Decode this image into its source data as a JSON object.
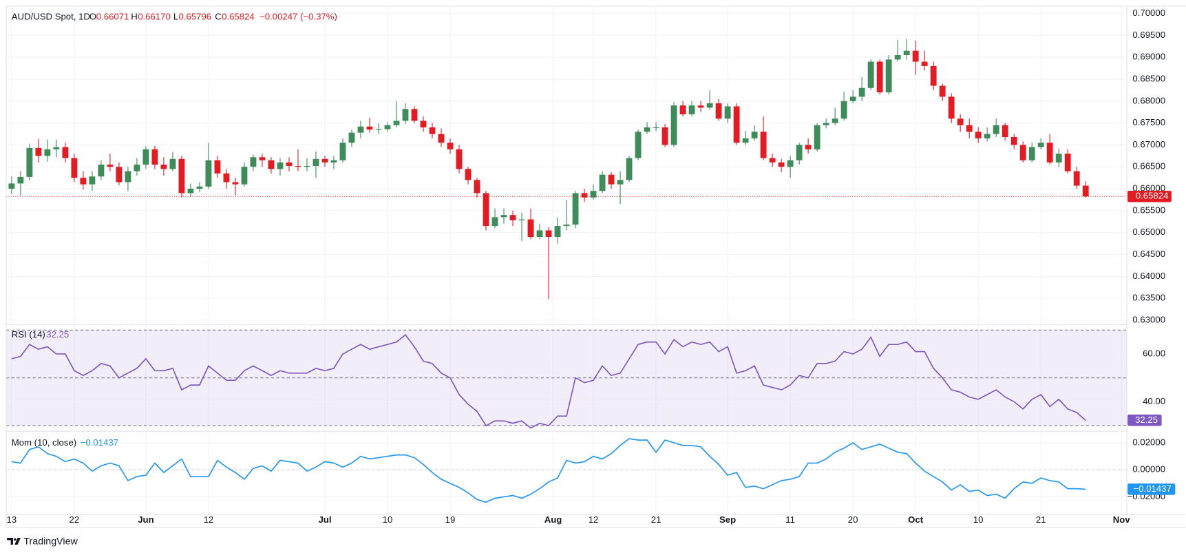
{
  "chart_data": [
    {
      "type": "candlestick",
      "title": "AUD/USD Spot, 1D",
      "header": [
        {
          "label": "O",
          "value": "0.66071"
        },
        {
          "label": "H",
          "value": "0.66170"
        },
        {
          "label": "L",
          "value": "0.65796"
        },
        {
          "label": "C",
          "value": "0.65824"
        }
      ],
      "change": "−0.00247 (−0.37%)",
      "up_color": "#3d8c59",
      "down_color": "#e31b23",
      "grid": true,
      "open": [
        0.66,
        0.6612,
        0.6627,
        0.6693,
        0.6675,
        0.669,
        0.6695,
        0.667,
        0.6625,
        0.661,
        0.6628,
        0.6655,
        0.665,
        0.6615,
        0.664,
        0.6655,
        0.669,
        0.6655,
        0.6645,
        0.6668,
        0.659,
        0.66,
        0.6605,
        0.6665,
        0.6635,
        0.6615,
        0.661,
        0.665,
        0.6672,
        0.6665,
        0.6645,
        0.666,
        0.6652,
        0.665,
        0.6652,
        0.6668,
        0.666,
        0.6665,
        0.6705,
        0.6728,
        0.6742,
        0.6735,
        0.6736,
        0.6745,
        0.6755,
        0.6782,
        0.6755,
        0.674,
        0.6725,
        0.6705,
        0.669,
        0.6645,
        0.662,
        0.659,
        0.6515,
        0.6535,
        0.654,
        0.6528,
        0.653,
        0.649,
        0.6505,
        0.649,
        0.6515,
        0.6518,
        0.659,
        0.658,
        0.6595,
        0.6632,
        0.661,
        0.662,
        0.667,
        0.673,
        0.674,
        0.674,
        0.67,
        0.679,
        0.677,
        0.679,
        0.6785,
        0.6795,
        0.676,
        0.6788,
        0.6705,
        0.6715,
        0.673,
        0.667,
        0.666,
        0.665,
        0.6665,
        0.67,
        0.669,
        0.6745,
        0.675,
        0.676,
        0.68,
        0.681,
        0.683,
        0.689,
        0.682,
        0.6895,
        0.6905,
        0.6915,
        0.689,
        0.688,
        0.6835,
        0.681,
        0.676,
        0.6745,
        0.673,
        0.6715,
        0.6725,
        0.6745,
        0.6718,
        0.67,
        0.6665,
        0.6695,
        0.6705,
        0.666,
        0.668,
        0.664,
        0.66071
      ],
      "high": [
        0.6628,
        0.664,
        0.6703,
        0.6714,
        0.6712,
        0.6712,
        0.6705,
        0.668,
        0.664,
        0.664,
        0.6665,
        0.668,
        0.666,
        0.665,
        0.667,
        0.6697,
        0.6698,
        0.6672,
        0.6684,
        0.6675,
        0.6612,
        0.6615,
        0.6705,
        0.6675,
        0.6645,
        0.6625,
        0.666,
        0.6678,
        0.668,
        0.6672,
        0.667,
        0.6672,
        0.669,
        0.667,
        0.6685,
        0.6675,
        0.6675,
        0.6715,
        0.6735,
        0.6755,
        0.6762,
        0.675,
        0.6752,
        0.68,
        0.6795,
        0.6788,
        0.6765,
        0.675,
        0.6738,
        0.6715,
        0.67,
        0.665,
        0.6625,
        0.6595,
        0.6555,
        0.6555,
        0.655,
        0.6545,
        0.6555,
        0.652,
        0.6512,
        0.6535,
        0.6575,
        0.6595,
        0.66,
        0.661,
        0.664,
        0.6638,
        0.664,
        0.6675,
        0.6735,
        0.6752,
        0.6752,
        0.6748,
        0.6798,
        0.68,
        0.68,
        0.68,
        0.6825,
        0.6805,
        0.6795,
        0.6795,
        0.6732,
        0.6745,
        0.6765,
        0.668,
        0.6668,
        0.6675,
        0.6705,
        0.6715,
        0.675,
        0.676,
        0.6785,
        0.6822,
        0.6825,
        0.6855,
        0.6895,
        0.6895,
        0.6905,
        0.694,
        0.6942,
        0.6938,
        0.6915,
        0.689,
        0.684,
        0.6818,
        0.677,
        0.676,
        0.674,
        0.674,
        0.676,
        0.675,
        0.6725,
        0.6708,
        0.6705,
        0.6715,
        0.6725,
        0.6692,
        0.669,
        0.665,
        0.6617
      ],
      "low": [
        0.6588,
        0.6585,
        0.662,
        0.666,
        0.6662,
        0.6672,
        0.666,
        0.6615,
        0.6598,
        0.6595,
        0.662,
        0.664,
        0.6608,
        0.6595,
        0.663,
        0.6645,
        0.6645,
        0.663,
        0.664,
        0.658,
        0.6582,
        0.6592,
        0.66,
        0.6625,
        0.66,
        0.6585,
        0.6605,
        0.664,
        0.665,
        0.6635,
        0.663,
        0.664,
        0.664,
        0.664,
        0.6625,
        0.665,
        0.6645,
        0.666,
        0.6695,
        0.6715,
        0.6728,
        0.6725,
        0.673,
        0.674,
        0.6748,
        0.675,
        0.673,
        0.6715,
        0.6695,
        0.668,
        0.6635,
        0.661,
        0.658,
        0.6505,
        0.651,
        0.652,
        0.6515,
        0.648,
        0.6485,
        0.6485,
        0.6348,
        0.6475,
        0.6505,
        0.651,
        0.657,
        0.6575,
        0.659,
        0.66,
        0.6565,
        0.6615,
        0.6665,
        0.6725,
        0.6732,
        0.6695,
        0.6695,
        0.6765,
        0.6765,
        0.6775,
        0.678,
        0.6755,
        0.675,
        0.67,
        0.67,
        0.671,
        0.6665,
        0.665,
        0.6638,
        0.6625,
        0.6655,
        0.668,
        0.6685,
        0.6738,
        0.6745,
        0.6755,
        0.6795,
        0.68,
        0.6825,
        0.6815,
        0.6815,
        0.689,
        0.6895,
        0.686,
        0.687,
        0.6825,
        0.68,
        0.675,
        0.673,
        0.6715,
        0.6705,
        0.6708,
        0.6718,
        0.671,
        0.669,
        0.666,
        0.666,
        0.669,
        0.6655,
        0.665,
        0.6635,
        0.66,
        0.65796
      ],
      "close": [
        0.6612,
        0.6627,
        0.6693,
        0.6675,
        0.669,
        0.6695,
        0.667,
        0.6625,
        0.661,
        0.6628,
        0.6655,
        0.665,
        0.6615,
        0.664,
        0.6655,
        0.669,
        0.6655,
        0.6645,
        0.6668,
        0.659,
        0.66,
        0.6605,
        0.6665,
        0.6635,
        0.6615,
        0.661,
        0.665,
        0.6672,
        0.6665,
        0.6645,
        0.666,
        0.6652,
        0.665,
        0.6652,
        0.6668,
        0.666,
        0.6665,
        0.6705,
        0.6728,
        0.6742,
        0.6735,
        0.6736,
        0.6745,
        0.6755,
        0.6782,
        0.6755,
        0.674,
        0.6725,
        0.6705,
        0.669,
        0.6645,
        0.662,
        0.659,
        0.6515,
        0.6535,
        0.654,
        0.6528,
        0.653,
        0.649,
        0.6505,
        0.649,
        0.6515,
        0.6518,
        0.659,
        0.658,
        0.6595,
        0.6632,
        0.661,
        0.662,
        0.667,
        0.673,
        0.674,
        0.674,
        0.67,
        0.679,
        0.677,
        0.679,
        0.6785,
        0.6795,
        0.676,
        0.6788,
        0.6705,
        0.6715,
        0.673,
        0.667,
        0.666,
        0.665,
        0.6665,
        0.67,
        0.669,
        0.6745,
        0.675,
        0.676,
        0.68,
        0.681,
        0.683,
        0.689,
        0.682,
        0.6895,
        0.6905,
        0.6915,
        0.689,
        0.688,
        0.6835,
        0.681,
        0.676,
        0.6745,
        0.673,
        0.6715,
        0.6725,
        0.6745,
        0.6718,
        0.67,
        0.6665,
        0.6695,
        0.6705,
        0.666,
        0.668,
        0.664,
        0.6607,
        0.65824
      ],
      "ylim": [
        0.629,
        0.7017
      ],
      "yticks": [
        {
          "value": 0.63,
          "label": "0.63000"
        },
        {
          "value": 0.635,
          "label": "0.63500"
        },
        {
          "value": 0.64,
          "label": "0.64000"
        },
        {
          "value": 0.645,
          "label": "0.64500"
        },
        {
          "value": 0.65,
          "label": "0.65000"
        },
        {
          "value": 0.655,
          "label": "0.65500"
        },
        {
          "value": 0.66,
          "label": "0.66000"
        },
        {
          "value": 0.665,
          "label": "0.66500"
        },
        {
          "value": 0.67,
          "label": "0.67000"
        },
        {
          "value": 0.675,
          "label": "0.67500"
        },
        {
          "value": 0.68,
          "label": "0.68000"
        },
        {
          "value": 0.685,
          "label": "0.68500"
        },
        {
          "value": 0.69,
          "label": "0.69000"
        },
        {
          "value": 0.695,
          "label": "0.69500"
        },
        {
          "value": 0.7,
          "label": "0.70000"
        }
      ],
      "xlim": [
        -0.6,
        124.6
      ],
      "xticks": [
        {
          "value": 0,
          "label": "13"
        },
        {
          "value": 7,
          "label": "22"
        },
        {
          "value": 15,
          "label": "Jun"
        },
        {
          "value": 22,
          "label": "12"
        },
        {
          "value": 35,
          "label": "Jul"
        },
        {
          "value": 42,
          "label": "10"
        },
        {
          "value": 49,
          "label": "19"
        },
        {
          "value": 60.5,
          "label": "Aug"
        },
        {
          "value": 65,
          "label": "12"
        },
        {
          "value": 72,
          "label": "21"
        },
        {
          "value": 80,
          "label": "Sep"
        },
        {
          "value": 87,
          "label": "11"
        },
        {
          "value": 94,
          "label": "20"
        },
        {
          "value": 101,
          "label": "Oct"
        },
        {
          "value": 108,
          "label": "10"
        },
        {
          "value": 115,
          "label": "21"
        },
        {
          "value": 124,
          "label": "Nov"
        }
      ]
    },
    {
      "type": "line",
      "name": "RSI (14)",
      "color": "#7e57c2",
      "band": [
        30,
        70
      ],
      "levels": [
        30,
        50,
        70
      ],
      "values": [
        58,
        59,
        64,
        62,
        63,
        60,
        60,
        53,
        51,
        53,
        56,
        55,
        50,
        52,
        54,
        58,
        53,
        53,
        54,
        45,
        47,
        47,
        55,
        52,
        49,
        49,
        53,
        55,
        53,
        51,
        53,
        52,
        52,
        52,
        54,
        53,
        54,
        60,
        62,
        64,
        62,
        63,
        64,
        65,
        68,
        63,
        57,
        56,
        52,
        50,
        43,
        39,
        36,
        30,
        32,
        32,
        31,
        32,
        29,
        31,
        30,
        34,
        34,
        50,
        48,
        49,
        55,
        51,
        52,
        58,
        64,
        65,
        65,
        60,
        66,
        63,
        65,
        64,
        65,
        61,
        63,
        52,
        53,
        55,
        47,
        46,
        45,
        47,
        51,
        50,
        56,
        56,
        57,
        61,
        60,
        62,
        67,
        59,
        64,
        64,
        65,
        61,
        61,
        54,
        50,
        45,
        44,
        42,
        41,
        43,
        45,
        42,
        40,
        37,
        41,
        43,
        38,
        41,
        37,
        35.5,
        32.25
      ],
      "ylim": [
        28,
        72
      ],
      "yticks": [
        {
          "value": 40,
          "label": "40.00"
        },
        {
          "value": 60,
          "label": "60.00"
        }
      ]
    },
    {
      "type": "line",
      "name": "Mom (10, close)",
      "color": "#2196f3",
      "levels": [
        0
      ],
      "value_label": "−0.01437",
      "values": [
        0.006,
        0.005,
        0.015,
        0.017,
        0.012,
        0.01,
        0.006,
        0.008,
        0.005,
        -0.001,
        0.003,
        0.005,
        0.003,
        -0.008,
        -0.005,
        -0.004,
        0.005,
        -0.002,
        0.003,
        0.008,
        -0.005,
        -0.005,
        -0.005,
        0.007,
        0.002,
        -0.002,
        -0.007,
        0.001,
        0.003,
        -0.001,
        0.007,
        0.006,
        0.005,
        -0.001,
        0.002,
        0.006,
        0.005,
        0.002,
        0.005,
        0.01,
        0.008,
        0.009,
        0.01,
        0.011,
        0.011,
        0.009,
        0.004,
        -0.002,
        -0.007,
        -0.01,
        -0.013,
        -0.017,
        -0.022,
        -0.024,
        -0.021,
        -0.02,
        -0.019,
        -0.021,
        -0.018,
        -0.014,
        -0.009,
        -0.006,
        0.007,
        0.005,
        0.006,
        0.01,
        0.008,
        0.012,
        0.018,
        0.023,
        0.022,
        0.022,
        0.013,
        0.022,
        0.02,
        0.018,
        0.018,
        0.017,
        0.01,
        0.004,
        -0.004,
        -0.002,
        -0.013,
        -0.012,
        -0.014,
        -0.011,
        -0.008,
        -0.007,
        -0.005,
        0.005,
        0.005,
        0.008,
        0.013,
        0.016,
        0.02,
        0.015,
        0.017,
        0.019,
        0.016,
        0.013,
        0.012,
        0.005,
        -0.001,
        -0.005,
        -0.009,
        -0.015,
        -0.011,
        -0.016,
        -0.015,
        -0.019,
        -0.018,
        -0.021,
        -0.014,
        -0.009,
        -0.01,
        -0.006,
        -0.008,
        -0.009,
        -0.014,
        -0.014,
        -0.01437
      ],
      "ylim": [
        -0.033,
        0.028
      ],
      "yticks": [
        {
          "value": -0.02,
          "label": "−0.02000"
        },
        {
          "value": 0,
          "label": "0.00000"
        },
        {
          "value": 0.02,
          "label": "0.02000"
        }
      ]
    }
  ],
  "footer": "TradingView"
}
